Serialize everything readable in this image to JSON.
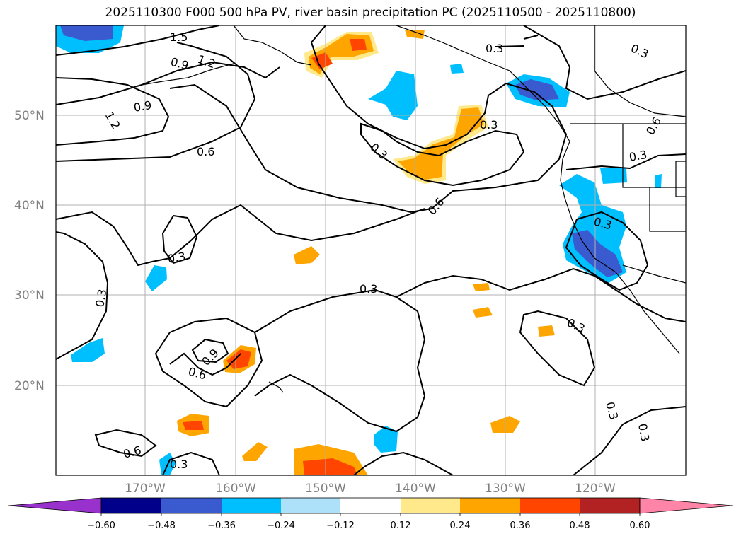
{
  "title": "2025110300 F000 500 hPa PV, river basin precipitation PC (2025110500 - 2025110800)",
  "map": {
    "lat_labels": [
      "50°N",
      "40°N",
      "30°N",
      "20°N"
    ],
    "lon_labels": [
      "170°W",
      "160°W",
      "150°W",
      "140°W",
      "130°W",
      "120°W"
    ],
    "contour_labels": [
      "1.5",
      "1.2",
      "0.9",
      "1.2",
      "0.9",
      "0.6",
      "0.3",
      "0.3",
      "0.3",
      "0.6",
      "0.3",
      "0.6",
      "0.3",
      "0.3",
      "0.3",
      "0.9",
      "0.6",
      "0.3",
      "0.3",
      "0.3",
      "0.3",
      "0.3",
      "0.6",
      "0.3",
      "0.3",
      "0.3"
    ]
  },
  "colorbar": {
    "ticks": [
      "−0.60",
      "−0.48",
      "−0.36",
      "−0.24",
      "−0.12",
      "0.12",
      "0.24",
      "0.36",
      "0.48",
      "0.60"
    ],
    "colors": [
      "#9932CC",
      "#00008B",
      "#3A5BD0",
      "#00BFFF",
      "#ADE1FA",
      "#FFFFFF",
      "#FFE98A",
      "#FFA500",
      "#FF4500",
      "#B22222",
      "#FF85A8"
    ]
  }
}
